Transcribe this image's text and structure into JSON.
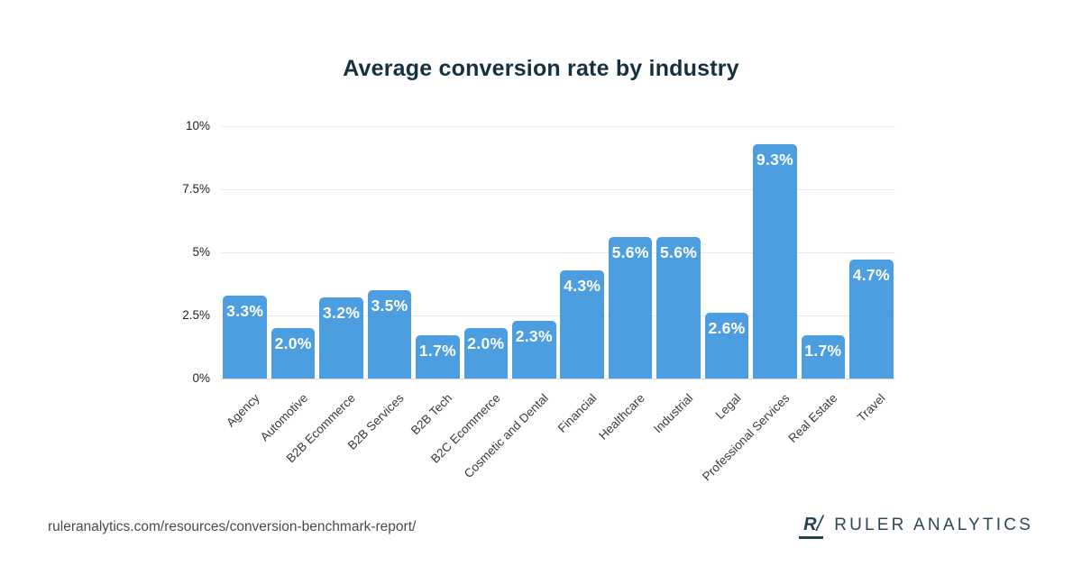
{
  "title": "Average conversion rate by industry",
  "chart_data": {
    "type": "bar",
    "title": "Average conversion rate by industry",
    "categories": [
      "Agency",
      "Automotive",
      "B2B Ecommerce",
      "B2B Services",
      "B2B Tech",
      "B2C Ecommerce",
      "Cosmetic and Dental",
      "Financial",
      "Healthcare",
      "Industrial",
      "Legal",
      "Professional Services",
      "Real Estate",
      "Travel"
    ],
    "values": [
      3.3,
      2.0,
      3.2,
      3.5,
      1.7,
      2.0,
      2.3,
      4.3,
      5.6,
      5.6,
      2.6,
      9.3,
      1.7,
      4.7
    ],
    "value_labels": [
      "3.3%",
      "2.0%",
      "3.2%",
      "3.5%",
      "1.7%",
      "2.0%",
      "2.3%",
      "4.3%",
      "5.6%",
      "5.6%",
      "2.6%",
      "9.3%",
      "1.7%",
      "4.7%"
    ],
    "xlabel": "",
    "ylabel": "",
    "ylim": [
      0,
      10
    ],
    "yticks": [
      {
        "label": "0%",
        "value": 0
      },
      {
        "label": "2.5%",
        "value": 2.5
      },
      {
        "label": "5%",
        "value": 5
      },
      {
        "label": "7.5%",
        "value": 7.5
      },
      {
        "label": "10%",
        "value": 10
      }
    ],
    "grid": true,
    "legend": "none",
    "bar_color": "#4d9ee1",
    "bar_label_color": "#ffffff"
  },
  "footer": {
    "source_url": "ruleranalytics.com/resources/conversion-benchmark-report/",
    "logo_r": "R",
    "logo_slash": "/",
    "brand": "RULER ANALYTICS"
  }
}
